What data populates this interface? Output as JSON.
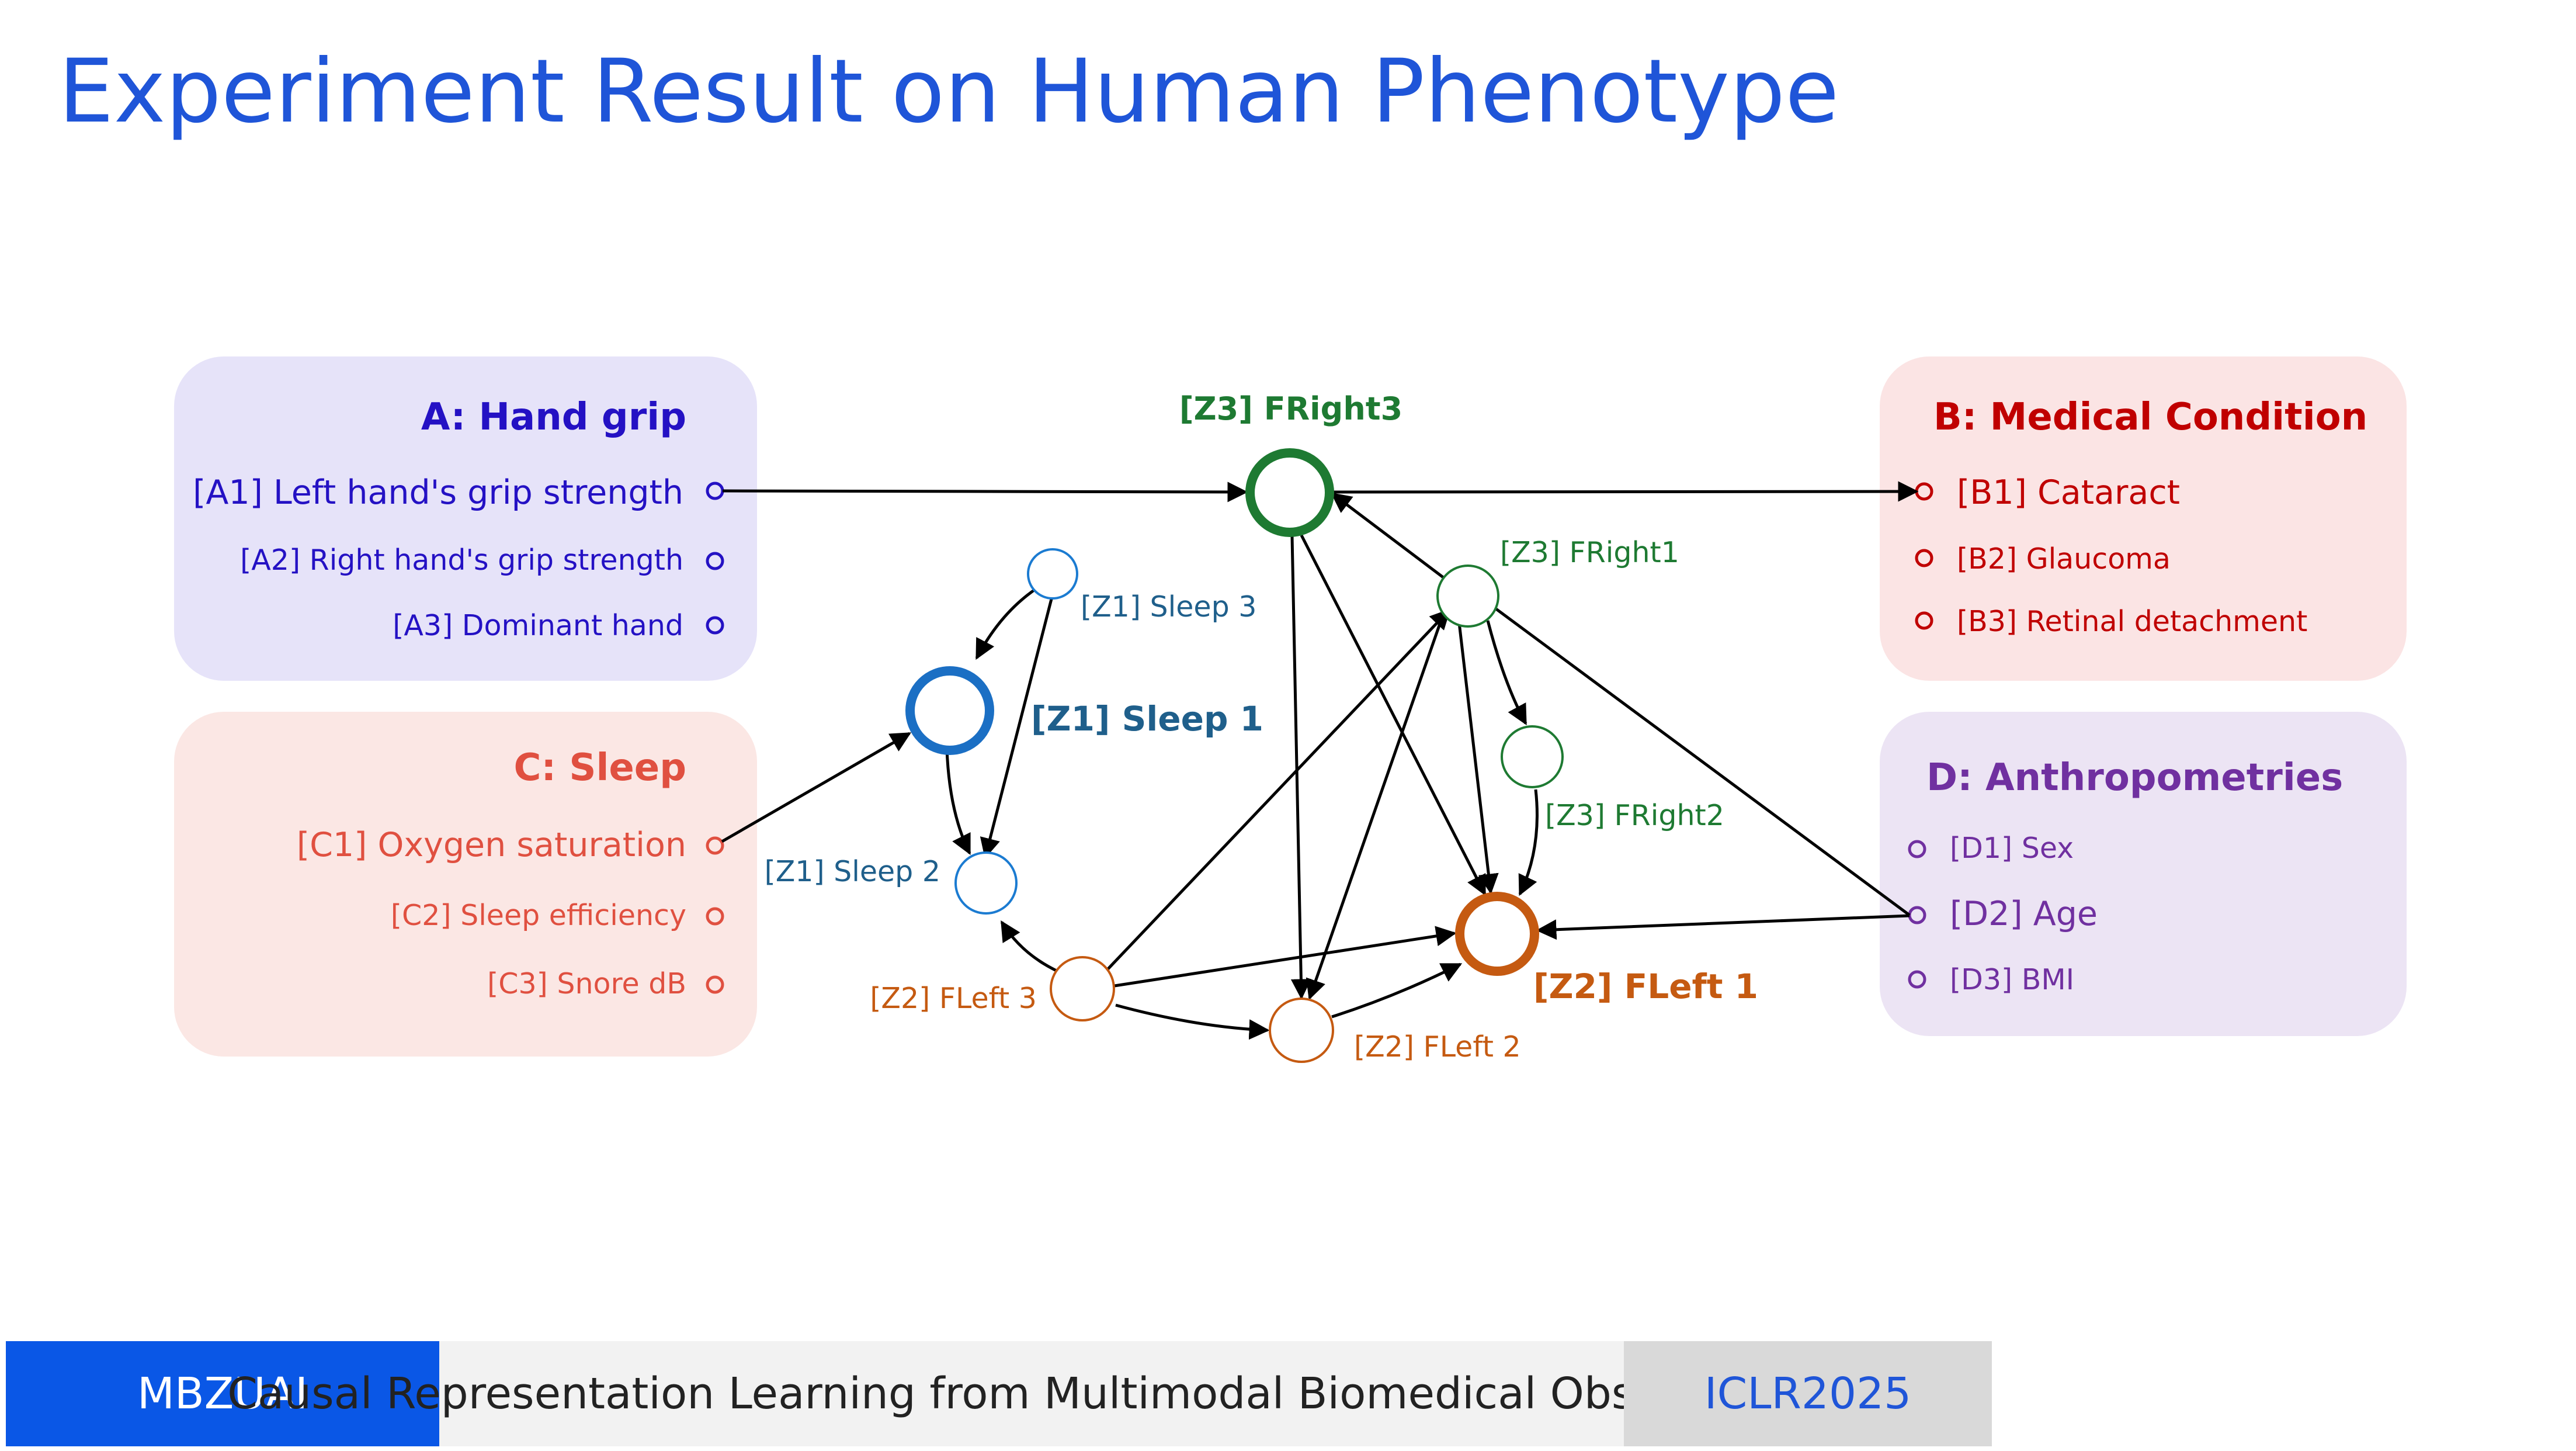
{
  "title": "Experiment Result on Human Phenotype",
  "colors": {
    "title": "#1f55d8",
    "handgrip": "#2411c4",
    "sleep_group": "#e05040",
    "medical": "#c00000",
    "anthro": "#7030a0",
    "z1": "#1f5f8b",
    "z2": "#c55a11",
    "z3": "#1e7a32",
    "edge": "#000000"
  },
  "groups": {
    "A": {
      "title": "A: Hand grip",
      "items": [
        "[A1] Left hand's grip strength",
        "[A2] Right hand's grip strength",
        "[A3] Dominant hand"
      ]
    },
    "B": {
      "title": "B: Medical Condition",
      "items": [
        "[B1] Cataract",
        "[B2] Glaucoma",
        "[B3] Retinal detachment"
      ]
    },
    "C": {
      "title": "C: Sleep",
      "items": [
        "[C1] Oxygen saturation",
        "[C2] Sleep efficiency",
        "[C3] Snore dB"
      ]
    },
    "D": {
      "title": "D: Anthropometries",
      "items": [
        "[D1] Sex",
        "[D2] Age",
        "[D3] BMI"
      ]
    }
  },
  "latents": {
    "z3_fright3": "[Z3] FRight3",
    "z3_fright1": "[Z3] FRight1",
    "z3_fright2": "[Z3] FRight2",
    "z1_sleep3": "[Z1] Sleep 3",
    "z1_sleep1": "[Z1] Sleep 1",
    "z1_sleep2": "[Z1] Sleep 2",
    "z2_fleft3": "[Z2] FLeft 3",
    "z2_fleft2": "[Z2] FLeft 2",
    "z2_fleft1": "[Z2] FLeft 1"
  },
  "footer": {
    "org": "MBZUAI",
    "talk": "Causal Representation Learning from Multimodal Biomedical Observations",
    "venue": "ICLR2025"
  }
}
